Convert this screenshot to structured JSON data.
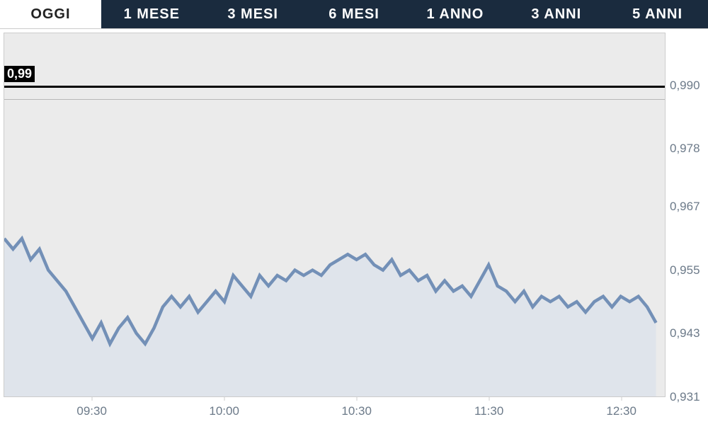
{
  "tabs": [
    {
      "label": "OGGI",
      "active": true
    },
    {
      "label": "1 MESE",
      "active": false
    },
    {
      "label": "3 MESI",
      "active": false
    },
    {
      "label": "6 MESI",
      "active": false
    },
    {
      "label": "1 ANNO",
      "active": false
    },
    {
      "label": "3 ANNI",
      "active": false
    },
    {
      "label": "5 ANNI",
      "active": false
    }
  ],
  "chart": {
    "type": "line-area",
    "background_color": "#ebebeb",
    "plot_border_color": "#cccccc",
    "line_color": "#7390b7",
    "line_width": 1.8,
    "fill_color": "#dfe4eb",
    "fill_color_alt": "#bfcde0",
    "tick_font_color": "#6c7a89",
    "tick_font_size": 17,
    "reference": {
      "value": 0.99,
      "label": "0,99",
      "label_bg": "#000000",
      "label_color": "#ffffff",
      "line_color": "#000000",
      "line_width": 3
    },
    "separator_y_value": 0.9875,
    "yaxis": {
      "min": 0.931,
      "max": 1.0,
      "ticks": [
        {
          "value": 0.99,
          "label": "0,990"
        },
        {
          "value": 0.978,
          "label": "0,978"
        },
        {
          "value": 0.967,
          "label": "0,967"
        },
        {
          "value": 0.955,
          "label": "0,955"
        },
        {
          "value": 0.943,
          "label": "0,943"
        },
        {
          "value": 0.931,
          "label": "0,931"
        }
      ]
    },
    "xaxis": {
      "min": 0,
      "max": 225,
      "ticks": [
        {
          "value": 30,
          "label": "09:30"
        },
        {
          "value": 75,
          "label": "10:00"
        },
        {
          "value": 120,
          "label": "10:30"
        },
        {
          "value": 165,
          "label": "11:30"
        },
        {
          "value": 210,
          "label": "12:30"
        }
      ]
    },
    "series": [
      {
        "x": 0,
        "y": 0.961
      },
      {
        "x": 3,
        "y": 0.959
      },
      {
        "x": 6,
        "y": 0.961
      },
      {
        "x": 9,
        "y": 0.957
      },
      {
        "x": 12,
        "y": 0.959
      },
      {
        "x": 15,
        "y": 0.955
      },
      {
        "x": 18,
        "y": 0.953
      },
      {
        "x": 21,
        "y": 0.951
      },
      {
        "x": 24,
        "y": 0.948
      },
      {
        "x": 27,
        "y": 0.945
      },
      {
        "x": 30,
        "y": 0.942
      },
      {
        "x": 33,
        "y": 0.945
      },
      {
        "x": 36,
        "y": 0.941
      },
      {
        "x": 39,
        "y": 0.944
      },
      {
        "x": 42,
        "y": 0.946
      },
      {
        "x": 45,
        "y": 0.943
      },
      {
        "x": 48,
        "y": 0.941
      },
      {
        "x": 51,
        "y": 0.944
      },
      {
        "x": 54,
        "y": 0.948
      },
      {
        "x": 57,
        "y": 0.95
      },
      {
        "x": 60,
        "y": 0.948
      },
      {
        "x": 63,
        "y": 0.95
      },
      {
        "x": 66,
        "y": 0.947
      },
      {
        "x": 69,
        "y": 0.949
      },
      {
        "x": 72,
        "y": 0.951
      },
      {
        "x": 75,
        "y": 0.949
      },
      {
        "x": 78,
        "y": 0.954
      },
      {
        "x": 81,
        "y": 0.952
      },
      {
        "x": 84,
        "y": 0.95
      },
      {
        "x": 87,
        "y": 0.954
      },
      {
        "x": 90,
        "y": 0.952
      },
      {
        "x": 93,
        "y": 0.954
      },
      {
        "x": 96,
        "y": 0.953
      },
      {
        "x": 99,
        "y": 0.955
      },
      {
        "x": 102,
        "y": 0.954
      },
      {
        "x": 105,
        "y": 0.955
      },
      {
        "x": 108,
        "y": 0.954
      },
      {
        "x": 111,
        "y": 0.956
      },
      {
        "x": 114,
        "y": 0.957
      },
      {
        "x": 117,
        "y": 0.958
      },
      {
        "x": 120,
        "y": 0.957
      },
      {
        "x": 123,
        "y": 0.958
      },
      {
        "x": 126,
        "y": 0.956
      },
      {
        "x": 129,
        "y": 0.955
      },
      {
        "x": 132,
        "y": 0.957
      },
      {
        "x": 135,
        "y": 0.954
      },
      {
        "x": 138,
        "y": 0.955
      },
      {
        "x": 141,
        "y": 0.953
      },
      {
        "x": 144,
        "y": 0.954
      },
      {
        "x": 147,
        "y": 0.951
      },
      {
        "x": 150,
        "y": 0.953
      },
      {
        "x": 153,
        "y": 0.951
      },
      {
        "x": 156,
        "y": 0.952
      },
      {
        "x": 159,
        "y": 0.95
      },
      {
        "x": 162,
        "y": 0.953
      },
      {
        "x": 165,
        "y": 0.956
      },
      {
        "x": 168,
        "y": 0.952
      },
      {
        "x": 171,
        "y": 0.951
      },
      {
        "x": 174,
        "y": 0.949
      },
      {
        "x": 177,
        "y": 0.951
      },
      {
        "x": 180,
        "y": 0.948
      },
      {
        "x": 183,
        "y": 0.95
      },
      {
        "x": 186,
        "y": 0.949
      },
      {
        "x": 189,
        "y": 0.95
      },
      {
        "x": 192,
        "y": 0.948
      },
      {
        "x": 195,
        "y": 0.949
      },
      {
        "x": 198,
        "y": 0.947
      },
      {
        "x": 201,
        "y": 0.949
      },
      {
        "x": 204,
        "y": 0.95
      },
      {
        "x": 207,
        "y": 0.948
      },
      {
        "x": 210,
        "y": 0.95
      },
      {
        "x": 213,
        "y": 0.949
      },
      {
        "x": 216,
        "y": 0.95
      },
      {
        "x": 219,
        "y": 0.948
      },
      {
        "x": 222,
        "y": 0.945
      }
    ]
  }
}
